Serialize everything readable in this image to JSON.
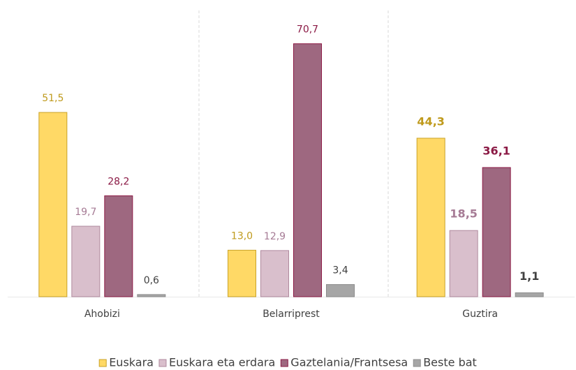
{
  "chart_data": {
    "type": "bar",
    "categories": [
      "Ahobizi",
      "Belarriprest",
      "Guztira"
    ],
    "series": [
      {
        "name": "Euskara",
        "color": "#FFD966",
        "border": "#C9A227",
        "label_color": "#BF9A1C",
        "values": [
          51.5,
          13.0,
          44.3
        ],
        "value_labels": [
          "51,5",
          "13,0",
          "44,3"
        ]
      },
      {
        "name": "Euskara eta erdara",
        "color": "#D9BFCC",
        "border": "#B08A9E",
        "label_color": "#A67B95",
        "values": [
          19.7,
          12.9,
          18.5
        ],
        "value_labels": [
          "19,7",
          "12,9",
          "18,5"
        ]
      },
      {
        "name": "Gaztelania/Frantsesa",
        "color": "#9E6880",
        "border": "#8B1A45",
        "label_color": "#8B1A45",
        "values": [
          28.2,
          70.7,
          36.1
        ],
        "value_labels": [
          "28,2",
          "70,7",
          "36,1"
        ]
      },
      {
        "name": "Beste bat",
        "color": "#A6A6A6",
        "border": "#8C8C8C",
        "label_color": "#404040",
        "values": [
          0.6,
          3.4,
          1.1
        ],
        "value_labels": [
          "0,6",
          "3,4",
          "1,1"
        ]
      }
    ],
    "ylim": [
      0,
      80
    ],
    "legend": "bottom"
  }
}
